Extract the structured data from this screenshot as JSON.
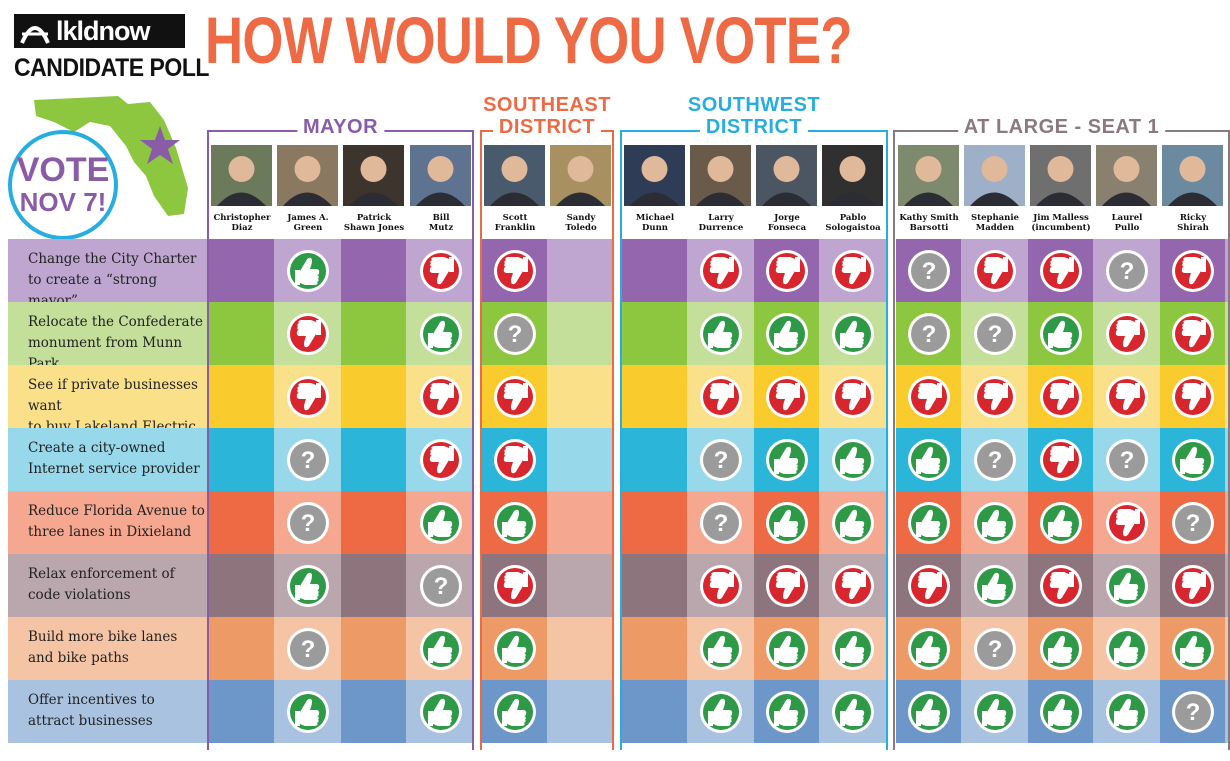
{
  "header": {
    "logo_text": "lkldnow",
    "poll_label": "CANDIDATE POLL",
    "headline": "HOW WOULD YOU VOTE?",
    "vote_word": "VOTE",
    "vote_date": "NOV 7!"
  },
  "colors": {
    "headline": "#ee6a45",
    "mayor": "#8a5ca8",
    "southeast": "#ee6a45",
    "southwest": "#27aee0",
    "at_large": "#8a7a80",
    "yes": "#2e9a47",
    "no": "#d7262e",
    "unsure": "#9b9b9b",
    "florida": "#8dc63f",
    "star": "#8a5ca8"
  },
  "groups": [
    {
      "title": "MAYOR",
      "color": "#8a5ca8"
    },
    {
      "title": "SOUTHEAST DISTRICT",
      "color": "#ee6a45"
    },
    {
      "title": "SOUTHWEST DISTRICT",
      "color": "#27aee0"
    },
    {
      "title": "AT LARGE - SEAT 1",
      "color": "#8a7a80"
    }
  ],
  "candidates": [
    {
      "name": "Christopher Diaz",
      "line1": "Christopher",
      "line2": "Diaz",
      "group": 0
    },
    {
      "name": "James A. Green",
      "line1": "James A.",
      "line2": "Green",
      "group": 0
    },
    {
      "name": "Patrick Shawn Jones",
      "line1": "Patrick",
      "line2": "Shawn Jones",
      "group": 0
    },
    {
      "name": "Bill Mutz",
      "line1": "Bill",
      "line2": "Mutz",
      "group": 0
    },
    {
      "name": "Scott Franklin",
      "line1": "Scott",
      "line2": "Franklin",
      "group": 1
    },
    {
      "name": "Sandy Toledo",
      "line1": "Sandy",
      "line2": "Toledo",
      "group": 1
    },
    {
      "name": "Michael Dunn",
      "line1": "Michael",
      "line2": "Dunn",
      "group": 2
    },
    {
      "name": "Larry Durrence",
      "line1": "Larry",
      "line2": "Durrence",
      "group": 2
    },
    {
      "name": "Jorge Fonseca",
      "line1": "Jorge",
      "line2": "Fonseca",
      "group": 2
    },
    {
      "name": "Pablo Sologaistoa",
      "line1": "Pablo",
      "line2": "Sologaistoa",
      "group": 2
    },
    {
      "name": "Kathy Smith Barsotti",
      "line1": "Kathy Smith",
      "line2": "Barsotti",
      "group": 3
    },
    {
      "name": "Stephanie Madden",
      "line1": "Stephanie",
      "line2": "Madden",
      "group": 3
    },
    {
      "name": "Jim Malless (incumbent)",
      "line1": "Jim Malless",
      "line2": "(incumbent)",
      "group": 3
    },
    {
      "name": "Laurel Pullo",
      "line1": "Laurel",
      "line2": "Pullo",
      "group": 3
    },
    {
      "name": "Ricky Shirah",
      "line1": "Ricky",
      "line2": "Shirah",
      "group": 3
    }
  ],
  "questions": [
    {
      "line1": "Change the City Charter",
      "line2": "to create a “strong mayor”",
      "dark": "#9366ae",
      "light": "#bfa6d0"
    },
    {
      "line1": "Relocate the Confederate",
      "line2": "monument from Munn Park",
      "dark": "#8dc63f",
      "light": "#c3df9a"
    },
    {
      "line1": "See if private businesses want",
      "line2": "to buy Lakeland Electric",
      "dark": "#f9cb2c",
      "light": "#fbe08a"
    },
    {
      "line1": "Create a city-owned",
      "line2": "Internet service provider",
      "dark": "#2bb6d9",
      "light": "#97d8ea"
    },
    {
      "line1": "Reduce Florida Avenue to",
      "line2": "three lanes in Dixieland",
      "dark": "#ee6a45",
      "light": "#f5a88f"
    },
    {
      "line1": "Relax enforcement of",
      "line2": "code violations",
      "dark": "#8e747d",
      "light": "#b9a7ad"
    },
    {
      "line1": "Build more bike lanes",
      "line2": "and bike paths",
      "dark": "#ee9a66",
      "light": "#f5c4a4"
    },
    {
      "line1": "Offer incentives to",
      "line2": "attract businesses",
      "dark": "#6e97c9",
      "light": "#a9c2e0"
    }
  ],
  "chart_data": {
    "type": "table",
    "title": "HOW WOULD YOU VOTE?",
    "columns": [
      "Christopher Diaz",
      "James A. Green",
      "Patrick Shawn Jones",
      "Bill Mutz",
      "Scott Franklin",
      "Sandy Toledo",
      "Michael Dunn",
      "Larry Durrence",
      "Jorge Fonseca",
      "Pablo Sologaistoa",
      "Kathy Smith Barsotti",
      "Stephanie Madden",
      "Jim Malless (incumbent)",
      "Laurel Pullo",
      "Ricky Shirah"
    ],
    "rows": [
      "Change the City Charter to create a “strong mayor”",
      "Relocate the Confederate monument from Munn Park",
      "See if private businesses want to buy Lakeland Electric",
      "Create a city-owned Internet service provider",
      "Reduce Florida Avenue to three lanes in Dixieland",
      "Relax enforcement of code violations",
      "Build more bike lanes and bike paths",
      "Offer incentives to attract businesses"
    ],
    "legend": {
      "yes": "thumbs up",
      "no": "thumbs down",
      "unsure": "question mark",
      "none": "no response"
    },
    "values": [
      [
        "none",
        "yes",
        "none",
        "no",
        "no",
        "none",
        "none",
        "no",
        "no",
        "no",
        "unsure",
        "no",
        "no",
        "unsure",
        "no"
      ],
      [
        "none",
        "no",
        "none",
        "yes",
        "unsure",
        "none",
        "none",
        "yes",
        "yes",
        "yes",
        "unsure",
        "unsure",
        "yes",
        "no",
        "no"
      ],
      [
        "none",
        "no",
        "none",
        "no",
        "no",
        "none",
        "none",
        "no",
        "no",
        "no",
        "no",
        "no",
        "no",
        "no",
        "no"
      ],
      [
        "none",
        "unsure",
        "none",
        "no",
        "no",
        "none",
        "none",
        "unsure",
        "yes",
        "yes",
        "yes",
        "unsure",
        "no",
        "unsure",
        "yes"
      ],
      [
        "none",
        "unsure",
        "none",
        "yes",
        "yes",
        "none",
        "none",
        "unsure",
        "yes",
        "yes",
        "yes",
        "yes",
        "yes",
        "no",
        "unsure"
      ],
      [
        "none",
        "yes",
        "none",
        "unsure",
        "no",
        "none",
        "none",
        "no",
        "no",
        "no",
        "no",
        "yes",
        "no",
        "yes",
        "no"
      ],
      [
        "none",
        "unsure",
        "none",
        "yes",
        "yes",
        "none",
        "none",
        "yes",
        "yes",
        "yes",
        "yes",
        "unsure",
        "yes",
        "yes",
        "yes"
      ],
      [
        "none",
        "yes",
        "none",
        "yes",
        "yes",
        "none",
        "none",
        "yes",
        "yes",
        "yes",
        "yes",
        "yes",
        "yes",
        "yes",
        "unsure"
      ]
    ]
  }
}
